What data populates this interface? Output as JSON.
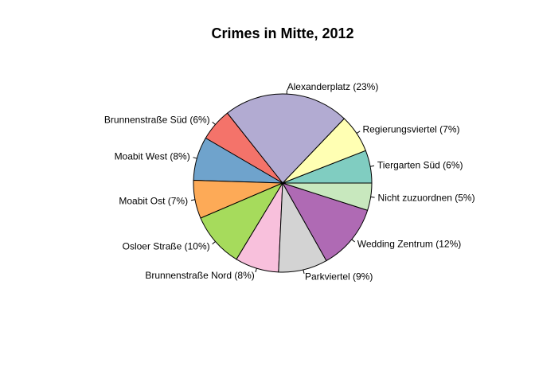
{
  "chart_data": {
    "type": "pie",
    "title": "Crimes in Mitte, 2012",
    "start_angle_deg": 0,
    "direction": "counterclockwise",
    "slices": [
      {
        "label": "Tiergarten Süd (6%)",
        "value": 6,
        "color": "#80CDC1"
      },
      {
        "label": "Regierungsviertel (7%)",
        "value": 7,
        "color": "#FFFFB3"
      },
      {
        "label": "Alexanderplatz (23%)",
        "value": 23,
        "color": "#B2ABD2"
      },
      {
        "label": "Brunnenstraße Süd (6%)",
        "value": 6,
        "color": "#F4736A"
      },
      {
        "label": "Moabit West (8%)",
        "value": 8,
        "color": "#6FA3CC"
      },
      {
        "label": "Moabit Ost (7%)",
        "value": 7,
        "color": "#FDAA57"
      },
      {
        "label": "Osloer Straße (10%)",
        "value": 10,
        "color": "#A6DB5C"
      },
      {
        "label": "Brunnenstraße Nord (8%)",
        "value": 8,
        "color": "#F8C0DC"
      },
      {
        "label": "Parkviertel (9%)",
        "value": 9,
        "color": "#D3D3D3"
      },
      {
        "label": "Wedding Zentrum (12%)",
        "value": 12,
        "color": "#AF6AB4"
      },
      {
        "label": "Nicht zuzuordnen (5%)",
        "value": 5,
        "color": "#C8E8BE"
      }
    ]
  }
}
